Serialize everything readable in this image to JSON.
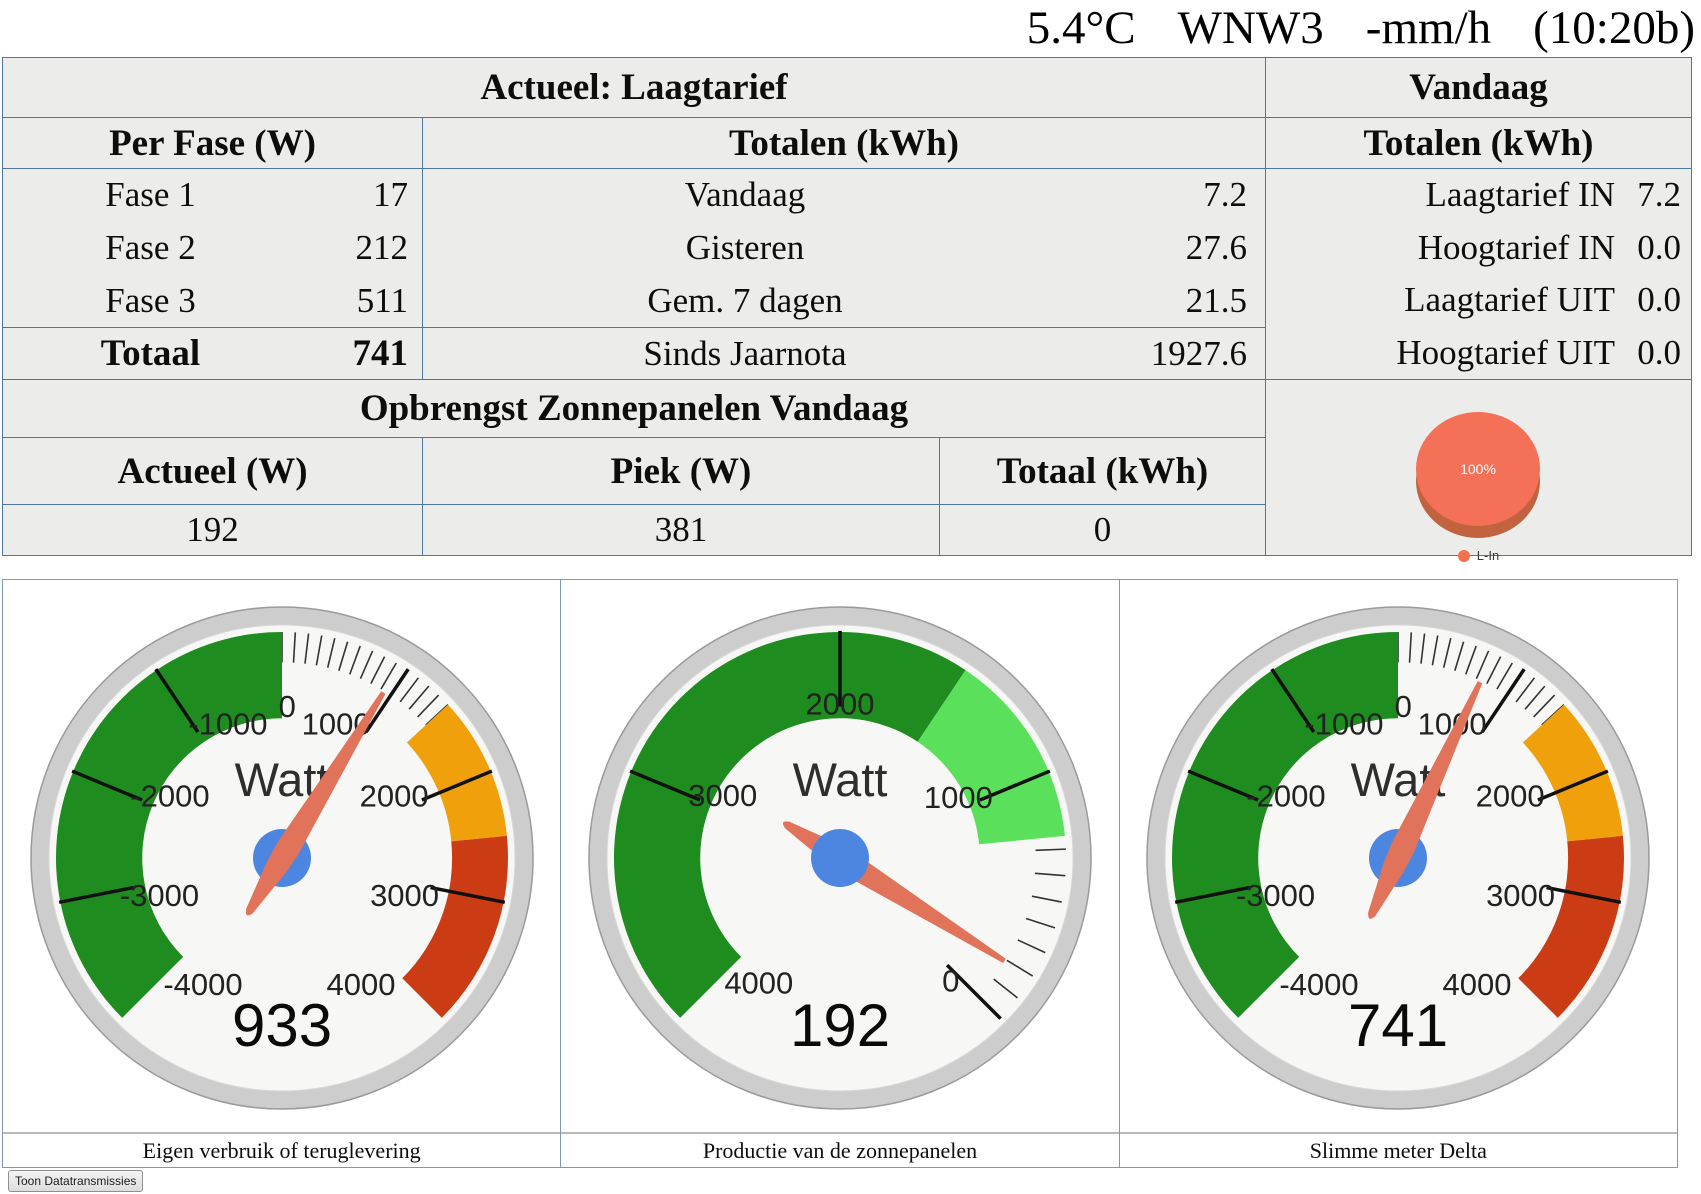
{
  "weather": {
    "temp": "5.4°C",
    "wind": "WNW3",
    "rain": "-mm/h",
    "time": "(10:20b)"
  },
  "table": {
    "actueel_header": "Actueel: Laagtarief",
    "vandaag_header": "Vandaag",
    "per_fase_header": "Per Fase (W)",
    "totalen_header": "Totalen (kWh)",
    "vandaag_totalen_header": "Totalen (kWh)",
    "fase_rows": [
      {
        "label": "Fase 1",
        "value": "17"
      },
      {
        "label": "Fase 2",
        "value": "212"
      },
      {
        "label": "Fase 3",
        "value": "511"
      }
    ],
    "fase_total": {
      "label": "Totaal",
      "value": "741"
    },
    "totalen_rows": [
      {
        "label": "Vandaag",
        "value": "7.2"
      },
      {
        "label": "Gisteren",
        "value": "27.6"
      },
      {
        "label": "Gem. 7 dagen",
        "value": "21.5"
      }
    ],
    "totalen_total": {
      "label": "Sinds Jaarnota",
      "value": "1927.6"
    },
    "tarief_rows": [
      {
        "label": "Laagtarief IN",
        "value": "7.2"
      },
      {
        "label": "Hoogtarief IN",
        "value": "0.0"
      },
      {
        "label": "Laagtarief UIT",
        "value": "0.0"
      },
      {
        "label": "Hoogtarief UIT",
        "value": "0.0"
      }
    ],
    "opbrengst_title": "Opbrengst Zonnepanelen Vandaag",
    "opbrengst_cols": [
      {
        "header": "Actueel (W)",
        "value": "192"
      },
      {
        "header": "Piek (W)",
        "value": "381"
      },
      {
        "header": "Totaal (kWh)",
        "value": "0"
      }
    ]
  },
  "chart_data": [
    {
      "type": "pie",
      "title": "",
      "values": [
        100
      ],
      "labels": [
        "L-In"
      ],
      "slice_label": "100%",
      "colors": [
        "#f47158"
      ],
      "side_color": "#c2633f",
      "legend_position": "bottom"
    },
    {
      "type": "gauge",
      "unit": "Watt",
      "value": 933,
      "min": -4000,
      "max": 4000,
      "span_deg": 270,
      "reversed": false,
      "hub_over_needle": false,
      "caption": "Eigen verbruik of teruglevering",
      "bands": [
        {
          "from": -4000,
          "to": 0,
          "color": "#1e8c1e",
          "inner": 0.6
        },
        {
          "from": 1400,
          "to": 2500,
          "color": "#f0a00a",
          "inner": 0.73
        },
        {
          "from": 2500,
          "to": 4000,
          "color": "#cc3c14",
          "inner": 0.73
        }
      ],
      "major_ticks": [
        -3000,
        -2000,
        -1000,
        1000,
        2000,
        3000
      ],
      "minor_tick_range": [
        0,
        1400
      ],
      "minor_tick_step": 100,
      "labels": [
        {
          "t": "0",
          "a": 2,
          "r": 0.65
        },
        {
          "t": "-1000",
          "a": -22,
          "r": 0.62
        },
        {
          "t": "1000",
          "a": 22,
          "r": 0.62
        },
        {
          "t": "-2000",
          "a": -61,
          "r": 0.55
        },
        {
          "t": "2000",
          "a": 61,
          "r": 0.55
        },
        {
          "t": "-3000",
          "a": -107,
          "r": 0.55
        },
        {
          "t": "3000",
          "a": 107,
          "r": 0.55
        },
        {
          "t": "-4000",
          "a": -148,
          "r": 0.64
        },
        {
          "t": "4000",
          "a": 148,
          "r": 0.64
        }
      ]
    },
    {
      "type": "gauge",
      "unit": "Watt",
      "value": 192,
      "min": 0,
      "max": 4000,
      "span_deg": 270,
      "reversed": true,
      "hub_over_needle": true,
      "caption": "Productie van de zonnepanelen",
      "bands": [
        {
          "from": 1500,
          "to": 4000,
          "color": "#1e8c1e",
          "inner": 0.6
        },
        {
          "from": 750,
          "to": 1500,
          "color": "#5be05b",
          "inner": 0.6
        }
      ],
      "major_ticks": [
        0,
        1000,
        2000,
        3000
      ],
      "minor_tick_range": [
        0,
        750
      ],
      "minor_tick_step": 100,
      "labels": [
        {
          "t": "2000",
          "a": 0,
          "r": 0.66
        },
        {
          "t": "1000",
          "a": 63,
          "r": 0.57
        },
        {
          "t": "3000",
          "a": -62,
          "r": 0.57
        },
        {
          "t": "0",
          "a": 138,
          "r": 0.71
        },
        {
          "t": "4000",
          "a": -147,
          "r": 0.64
        }
      ]
    },
    {
      "type": "gauge",
      "unit": "Watt",
      "value": 741,
      "min": -4000,
      "max": 4000,
      "span_deg": 270,
      "reversed": false,
      "hub_over_needle": false,
      "caption": "Slimme meter Delta",
      "bands": [
        {
          "from": -4000,
          "to": 0,
          "color": "#1e8c1e",
          "inner": 0.6
        },
        {
          "from": 1400,
          "to": 2500,
          "color": "#f0a00a",
          "inner": 0.73
        },
        {
          "from": 2500,
          "to": 4000,
          "color": "#cc3c14",
          "inner": 0.73
        }
      ],
      "major_ticks": [
        -3000,
        -2000,
        -1000,
        1000,
        2000,
        3000
      ],
      "minor_tick_range": [
        0,
        1400
      ],
      "minor_tick_step": 100,
      "labels": [
        {
          "t": "0",
          "a": 2,
          "r": 0.65
        },
        {
          "t": "-1000",
          "a": -22,
          "r": 0.62
        },
        {
          "t": "1000",
          "a": 22,
          "r": 0.62
        },
        {
          "t": "-2000",
          "a": -61,
          "r": 0.55
        },
        {
          "t": "2000",
          "a": 61,
          "r": 0.55
        },
        {
          "t": "-3000",
          "a": -107,
          "r": 0.55
        },
        {
          "t": "3000",
          "a": 107,
          "r": 0.55
        },
        {
          "t": "-4000",
          "a": -148,
          "r": 0.64
        },
        {
          "t": "4000",
          "a": 148,
          "r": 0.64
        }
      ]
    }
  ],
  "button": {
    "label": "Toon Datatransmissies"
  },
  "colors": {
    "table_border": "#4d78a3",
    "table_bg": "#ececea",
    "gauge_green": "#1e8c1e",
    "gauge_light_green": "#5be05b",
    "gauge_orange": "#f0a00a",
    "gauge_red": "#cc3c14",
    "needle": "#e0735a",
    "hub_blue": "#4d86e0",
    "pie": "#f47158"
  }
}
